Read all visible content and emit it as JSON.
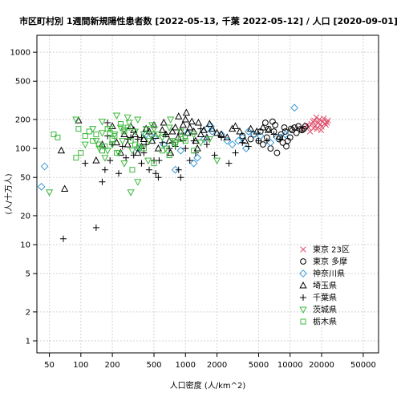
{
  "chart_data": {
    "type": "scatter",
    "title": "市区町村別 1週間新規陽性患者数 [2022-05-13, 千葉 2022-05-12] / 人口 [2020-09-01]",
    "xlabel": "人口密度 (人/km^2)",
    "ylabel": "(人/十万人)",
    "x_scale": "log",
    "y_scale": "log",
    "xlim": [
      38,
      70000
    ],
    "ylim": [
      0.75,
      1500
    ],
    "x_ticks": [
      50,
      100,
      200,
      500,
      1000,
      2000,
      5000,
      10000,
      20000,
      50000
    ],
    "x_tick_labels": [
      "50",
      "100",
      "200",
      "500",
      "1000",
      "2000",
      "5000",
      "10000",
      "20000",
      "50000"
    ],
    "y_ticks": [
      1,
      2,
      5,
      10,
      20,
      50,
      100,
      200,
      500,
      1000
    ],
    "y_tick_labels": [
      "1",
      "2",
      "5",
      "10",
      "20",
      "50",
      "100",
      "200",
      "500",
      "1000"
    ],
    "grid": true,
    "legend_position": "bottom-right",
    "series": [
      {
        "name": "東京 23区",
        "marker": "x",
        "color": "#e0506e",
        "points": [
          [
            14500,
            175
          ],
          [
            15000,
            165
          ],
          [
            16000,
            180
          ],
          [
            16500,
            190
          ],
          [
            17000,
            195
          ],
          [
            17500,
            172
          ],
          [
            18000,
            160
          ],
          [
            18500,
            185
          ],
          [
            19000,
            200
          ],
          [
            19500,
            178
          ],
          [
            20000,
            168
          ],
          [
            20500,
            190
          ],
          [
            21000,
            205
          ],
          [
            21500,
            182
          ],
          [
            22000,
            175
          ],
          [
            23000,
            195
          ],
          [
            15500,
            150
          ],
          [
            17800,
            210
          ],
          [
            19800,
            155
          ],
          [
            16800,
            162
          ],
          [
            22500,
            185
          ],
          [
            13000,
            160
          ]
        ]
      },
      {
        "name": "東京 多摩",
        "marker": "circle",
        "color": "#000000",
        "points": [
          [
            4500,
            140
          ],
          [
            5000,
            120
          ],
          [
            5200,
            150
          ],
          [
            5500,
            110
          ],
          [
            6000,
            130
          ],
          [
            6200,
            160
          ],
          [
            6500,
            100
          ],
          [
            7000,
            150
          ],
          [
            7200,
            175
          ],
          [
            7500,
            90
          ],
          [
            8000,
            130
          ],
          [
            8200,
            140
          ],
          [
            8500,
            115
          ],
          [
            9000,
            150
          ],
          [
            9500,
            120
          ],
          [
            10000,
            130
          ],
          [
            10500,
            155
          ],
          [
            11000,
            165
          ],
          [
            11500,
            145
          ],
          [
            12000,
            170
          ],
          [
            12500,
            158
          ],
          [
            13000,
            155
          ],
          [
            13500,
            160
          ],
          [
            14000,
            170
          ],
          [
            6800,
            190
          ],
          [
            8800,
            165
          ],
          [
            5800,
            185
          ],
          [
            9200,
            105
          ],
          [
            3500,
            135
          ],
          [
            4200,
            125
          ],
          [
            10200,
            160
          ],
          [
            7800,
            125
          ]
        ]
      },
      {
        "name": "神奈川県",
        "marker": "diamond",
        "color": "#3b9bd6",
        "points": [
          [
            42,
            40
          ],
          [
            45,
            65
          ],
          [
            350,
            100
          ],
          [
            420,
            140
          ],
          [
            500,
            130
          ],
          [
            620,
            110
          ],
          [
            900,
            95
          ],
          [
            1050,
            145
          ],
          [
            1200,
            70
          ],
          [
            1300,
            80
          ],
          [
            1500,
            125
          ],
          [
            1600,
            160
          ],
          [
            1800,
            150
          ],
          [
            2200,
            140
          ],
          [
            2500,
            120
          ],
          [
            2800,
            110
          ],
          [
            3200,
            120
          ],
          [
            3500,
            130
          ],
          [
            4000,
            150
          ],
          [
            4500,
            140
          ],
          [
            5200,
            135
          ],
          [
            6500,
            115
          ],
          [
            7500,
            130
          ],
          [
            9000,
            140
          ],
          [
            11000,
            265
          ],
          [
            1750,
            170
          ],
          [
            3800,
            100
          ],
          [
            800,
            60
          ]
        ]
      },
      {
        "name": "埼玉県",
        "marker": "triangle",
        "color": "#000000",
        "points": [
          [
            65,
            95
          ],
          [
            70,
            38
          ],
          [
            95,
            195
          ],
          [
            140,
            75
          ],
          [
            160,
            110
          ],
          [
            200,
            170
          ],
          [
            220,
            115
          ],
          [
            240,
            90
          ],
          [
            260,
            140
          ],
          [
            280,
            110
          ],
          [
            300,
            170
          ],
          [
            320,
            155
          ],
          [
            330,
            140
          ],
          [
            350,
            90
          ],
          [
            380,
            105
          ],
          [
            400,
            125
          ],
          [
            420,
            160
          ],
          [
            450,
            150
          ],
          [
            480,
            120
          ],
          [
            500,
            175
          ],
          [
            520,
            135
          ],
          [
            550,
            100
          ],
          [
            600,
            155
          ],
          [
            620,
            185
          ],
          [
            650,
            140
          ],
          [
            700,
            120
          ],
          [
            720,
            90
          ],
          [
            750,
            150
          ],
          [
            800,
            165
          ],
          [
            850,
            130
          ],
          [
            900,
            150
          ],
          [
            950,
            175
          ],
          [
            1000,
            200
          ],
          [
            1020,
            235
          ],
          [
            1050,
            145
          ],
          [
            1100,
            165
          ],
          [
            1150,
            190
          ],
          [
            1200,
            150
          ],
          [
            1250,
            120
          ],
          [
            1300,
            100
          ],
          [
            1400,
            140
          ],
          [
            1500,
            155
          ],
          [
            1600,
            130
          ],
          [
            1800,
            160
          ],
          [
            2000,
            145
          ],
          [
            2200,
            140
          ],
          [
            2500,
            130
          ],
          [
            2800,
            160
          ],
          [
            3000,
            170
          ],
          [
            3300,
            150
          ],
          [
            3700,
            120
          ],
          [
            4200,
            160
          ],
          [
            4800,
            150
          ],
          [
            5500,
            165
          ],
          [
            6200,
            155
          ],
          [
            1700,
            180
          ],
          [
            860,
            215
          ],
          [
            1330,
            185
          ]
        ]
      },
      {
        "name": "千葉県",
        "marker": "plus",
        "color": "#000000",
        "points": [
          [
            68,
            11.5
          ],
          [
            110,
            70
          ],
          [
            140,
            15
          ],
          [
            160,
            45
          ],
          [
            170,
            60
          ],
          [
            180,
            135
          ],
          [
            190,
            75
          ],
          [
            200,
            110
          ],
          [
            230,
            55
          ],
          [
            250,
            105
          ],
          [
            270,
            80
          ],
          [
            300,
            130
          ],
          [
            320,
            85
          ],
          [
            350,
            125
          ],
          [
            380,
            70
          ],
          [
            400,
            90
          ],
          [
            420,
            110
          ],
          [
            450,
            60
          ],
          [
            500,
            75
          ],
          [
            520,
            55
          ],
          [
            550,
            50
          ],
          [
            600,
            115
          ],
          [
            650,
            140
          ],
          [
            700,
            100
          ],
          [
            750,
            115
          ],
          [
            800,
            105
          ],
          [
            900,
            50
          ],
          [
            950,
            120
          ],
          [
            1000,
            100
          ],
          [
            1100,
            75
          ],
          [
            1200,
            120
          ],
          [
            1400,
            160
          ],
          [
            1600,
            110
          ],
          [
            1900,
            85
          ],
          [
            2200,
            130
          ],
          [
            2600,
            70
          ],
          [
            3000,
            90
          ],
          [
            3500,
            115
          ],
          [
            4000,
            105
          ],
          [
            5000,
            120
          ],
          [
            6000,
            120
          ],
          [
            7000,
            140
          ],
          [
            8000,
            125
          ],
          [
            180,
            185
          ],
          [
            280,
            125
          ],
          [
            560,
            75
          ],
          [
            860,
            60
          ],
          [
            1250,
            90
          ],
          [
            380,
            130
          ]
        ]
      },
      {
        "name": "茨城県",
        "marker": "triangle-down",
        "color": "#3db83d",
        "points": [
          [
            50,
            35
          ],
          [
            90,
            200
          ],
          [
            110,
            110
          ],
          [
            130,
            160
          ],
          [
            140,
            120
          ],
          [
            150,
            100
          ],
          [
            160,
            190
          ],
          [
            170,
            80
          ],
          [
            180,
            95
          ],
          [
            190,
            160
          ],
          [
            200,
            110
          ],
          [
            210,
            140
          ],
          [
            220,
            220
          ],
          [
            230,
            90
          ],
          [
            240,
            165
          ],
          [
            250,
            120
          ],
          [
            260,
            70
          ],
          [
            280,
            210
          ],
          [
            290,
            185
          ],
          [
            300,
            35
          ],
          [
            310,
            95
          ],
          [
            330,
            150
          ],
          [
            350,
            200
          ],
          [
            370,
            100
          ],
          [
            400,
            140
          ],
          [
            420,
            160
          ],
          [
            450,
            120
          ],
          [
            480,
            175
          ],
          [
            500,
            160
          ],
          [
            550,
            140
          ],
          [
            600,
            130
          ],
          [
            650,
            100
          ],
          [
            700,
            165
          ],
          [
            750,
            120
          ],
          [
            800,
            110
          ],
          [
            900,
            150
          ],
          [
            1000,
            130
          ],
          [
            1200,
            140
          ],
          [
            1400,
            115
          ],
          [
            160,
            145
          ],
          [
            260,
            155
          ],
          [
            350,
            45
          ],
          [
            440,
            75
          ],
          [
            1700,
            125
          ],
          [
            2000,
            75
          ],
          [
            720,
            200
          ]
        ]
      },
      {
        "name": "栃木県",
        "marker": "square",
        "color": "#3db83d",
        "points": [
          [
            55,
            140
          ],
          [
            60,
            130
          ],
          [
            90,
            80
          ],
          [
            100,
            90
          ],
          [
            110,
            135
          ],
          [
            120,
            150
          ],
          [
            130,
            120
          ],
          [
            140,
            140
          ],
          [
            150,
            110
          ],
          [
            160,
            95
          ],
          [
            170,
            105
          ],
          [
            180,
            160
          ],
          [
            190,
            145
          ],
          [
            200,
            125
          ],
          [
            220,
            90
          ],
          [
            240,
            180
          ],
          [
            260,
            150
          ],
          [
            300,
            120
          ],
          [
            330,
            110
          ],
          [
            360,
            105
          ],
          [
            400,
            100
          ],
          [
            500,
            70
          ],
          [
            600,
            95
          ],
          [
            700,
            85
          ],
          [
            800,
            115
          ],
          [
            900,
            125
          ],
          [
            1000,
            120
          ],
          [
            1200,
            95
          ],
          [
            95,
            160
          ],
          [
            210,
            135
          ],
          [
            280,
            165
          ],
          [
            480,
            140
          ],
          [
            310,
            60
          ]
        ]
      }
    ]
  }
}
